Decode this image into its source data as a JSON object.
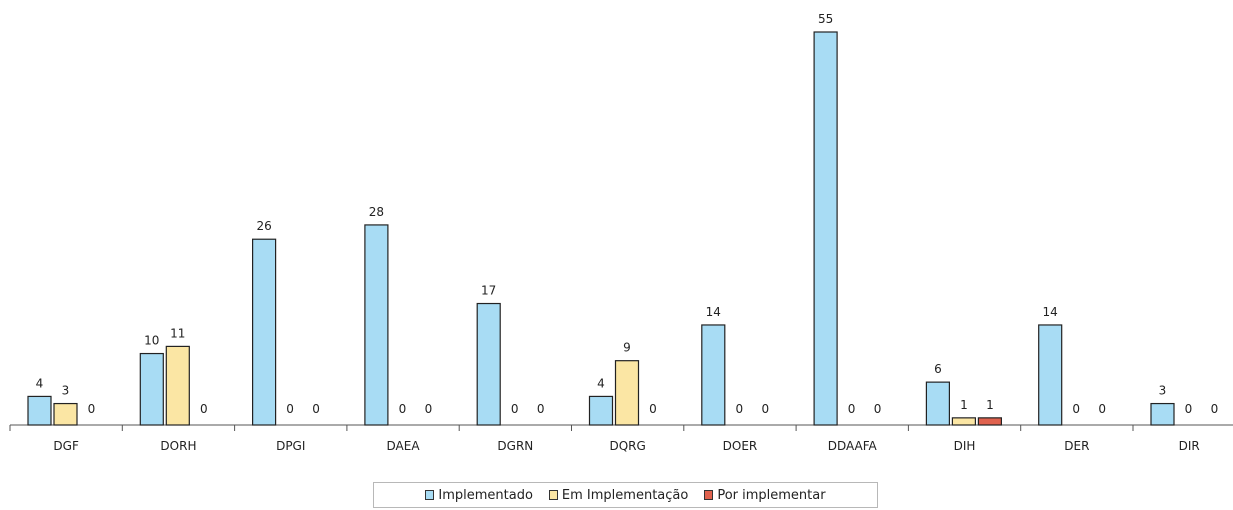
{
  "chart_data": {
    "type": "bar",
    "categories": [
      "DGF",
      "DORH",
      "DPGI",
      "DAEA",
      "DGRN",
      "DQRG",
      "DOER",
      "DDAAFA",
      "DIH",
      "DER",
      "DIR"
    ],
    "series": [
      {
        "name": "Implementado",
        "color": "#a8dcf4",
        "values": [
          4,
          10,
          26,
          28,
          17,
          4,
          14,
          55,
          6,
          14,
          3
        ]
      },
      {
        "name": "Em Implementação",
        "color": "#fbe6a4",
        "values": [
          3,
          11,
          0,
          0,
          0,
          9,
          0,
          0,
          1,
          0,
          0
        ]
      },
      {
        "name": "Por implementar",
        "color": "#e0624e",
        "values": [
          0,
          0,
          0,
          0,
          0,
          0,
          0,
          0,
          1,
          0,
          0
        ]
      }
    ],
    "show_zero_labels": [
      [
        true,
        true,
        true,
        true,
        true,
        true,
        true,
        true,
        true,
        true,
        true
      ],
      [
        true,
        true,
        true,
        true,
        true,
        true,
        true,
        true,
        true,
        true,
        true
      ],
      [
        true,
        true,
        true,
        true,
        true,
        true,
        true,
        true,
        true,
        true,
        true
      ]
    ],
    "ylim": [
      0,
      55
    ],
    "grid": false,
    "legend_position": "bottom",
    "title": "",
    "xlabel": "",
    "ylabel": ""
  },
  "legend": {
    "items": [
      {
        "label": "Implementado",
        "color": "#a8dcf4"
      },
      {
        "label": "Em Implementação",
        "color": "#fbe6a4"
      },
      {
        "label": "Por implementar",
        "color": "#e0624e"
      }
    ]
  }
}
